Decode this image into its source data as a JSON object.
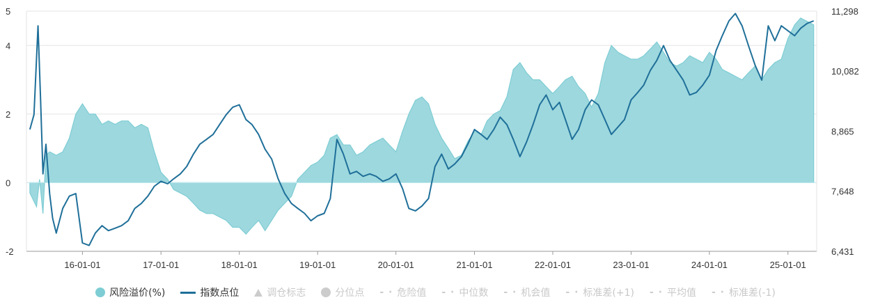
{
  "chart_data": {
    "type": "area",
    "x_tick_labels": [
      "16-01-01",
      "17-01-01",
      "18-01-01",
      "19-01-01",
      "20-01-01",
      "21-01-01",
      "22-01-01",
      "23-01-01",
      "24-01-01",
      "25-01-01"
    ],
    "y_left_ticks": [
      "5",
      "4",
      "2",
      "0",
      "-2"
    ],
    "y_right_ticks": [
      "11,298",
      "10,082",
      "8,865",
      "7,648",
      "6,431"
    ],
    "ylim_left": [
      -2,
      5
    ],
    "ylim_right": [
      6431,
      11298
    ],
    "grid": true,
    "legend_position": "bottom",
    "series": [
      {
        "name": "风险溢价(%)",
        "axis": "left",
        "kind": "area",
        "color": "#7ecdd4",
        "points": [
          [
            "2015-05-01",
            -0.3
          ],
          [
            "2015-06-01",
            -0.7
          ],
          [
            "2015-06-15",
            0.1
          ],
          [
            "2015-07-01",
            -0.9
          ],
          [
            "2015-07-15",
            0.8
          ],
          [
            "2015-08-01",
            0.9
          ],
          [
            "2015-09-01",
            0.8
          ],
          [
            "2015-10-01",
            0.9
          ],
          [
            "2015-11-01",
            1.3
          ],
          [
            "2015-12-01",
            2.0
          ],
          [
            "2016-01-01",
            2.3
          ],
          [
            "2016-02-01",
            2.0
          ],
          [
            "2016-03-01",
            2.0
          ],
          [
            "2016-04-01",
            1.7
          ],
          [
            "2016-05-01",
            1.8
          ],
          [
            "2016-06-01",
            1.7
          ],
          [
            "2016-07-01",
            1.8
          ],
          [
            "2016-08-01",
            1.8
          ],
          [
            "2016-09-01",
            1.6
          ],
          [
            "2016-10-01",
            1.7
          ],
          [
            "2016-11-01",
            1.6
          ],
          [
            "2016-12-01",
            0.9
          ],
          [
            "2017-01-01",
            0.3
          ],
          [
            "2017-02-01",
            0.1
          ],
          [
            "2017-03-01",
            -0.2
          ],
          [
            "2017-04-01",
            -0.3
          ],
          [
            "2017-05-01",
            -0.4
          ],
          [
            "2017-06-01",
            -0.6
          ],
          [
            "2017-07-01",
            -0.8
          ],
          [
            "2017-08-01",
            -0.9
          ],
          [
            "2017-09-01",
            -0.9
          ],
          [
            "2017-10-01",
            -1.0
          ],
          [
            "2017-11-01",
            -1.1
          ],
          [
            "2017-12-01",
            -1.3
          ],
          [
            "2018-01-01",
            -1.3
          ],
          [
            "2018-02-01",
            -1.5
          ],
          [
            "2018-03-01",
            -1.3
          ],
          [
            "2018-04-01",
            -1.1
          ],
          [
            "2018-05-01",
            -1.4
          ],
          [
            "2018-06-01",
            -1.1
          ],
          [
            "2018-07-01",
            -0.8
          ],
          [
            "2018-08-01",
            -0.6
          ],
          [
            "2018-09-01",
            -0.4
          ],
          [
            "2018-10-01",
            0.1
          ],
          [
            "2018-11-01",
            0.3
          ],
          [
            "2018-12-01",
            0.5
          ],
          [
            "2019-01-01",
            0.6
          ],
          [
            "2019-02-01",
            0.8
          ],
          [
            "2019-03-01",
            1.3
          ],
          [
            "2019-04-01",
            1.4
          ],
          [
            "2019-05-01",
            1.1
          ],
          [
            "2019-06-01",
            1.1
          ],
          [
            "2019-07-01",
            0.8
          ],
          [
            "2019-08-01",
            0.9
          ],
          [
            "2019-09-01",
            1.1
          ],
          [
            "2019-10-01",
            1.2
          ],
          [
            "2019-11-01",
            1.3
          ],
          [
            "2019-12-01",
            1.1
          ],
          [
            "2020-01-01",
            0.9
          ],
          [
            "2020-02-01",
            1.5
          ],
          [
            "2020-03-01",
            2.0
          ],
          [
            "2020-04-01",
            2.4
          ],
          [
            "2020-05-01",
            2.5
          ],
          [
            "2020-06-01",
            2.3
          ],
          [
            "2020-07-01",
            1.7
          ],
          [
            "2020-08-01",
            1.3
          ],
          [
            "2020-09-01",
            1.0
          ],
          [
            "2020-10-01",
            0.7
          ],
          [
            "2020-11-01",
            0.8
          ],
          [
            "2020-12-01",
            1.2
          ],
          [
            "2021-01-01",
            1.5
          ],
          [
            "2021-02-01",
            1.4
          ],
          [
            "2021-03-01",
            1.8
          ],
          [
            "2021-04-01",
            2.0
          ],
          [
            "2021-05-01",
            2.1
          ],
          [
            "2021-06-01",
            2.5
          ],
          [
            "2021-07-01",
            3.3
          ],
          [
            "2021-08-01",
            3.5
          ],
          [
            "2021-09-01",
            3.2
          ],
          [
            "2021-10-01",
            3.0
          ],
          [
            "2021-11-01",
            3.0
          ],
          [
            "2021-12-01",
            2.8
          ],
          [
            "2022-01-01",
            2.6
          ],
          [
            "2022-02-01",
            2.8
          ],
          [
            "2022-03-01",
            3.0
          ],
          [
            "2022-04-01",
            3.1
          ],
          [
            "2022-05-01",
            2.8
          ],
          [
            "2022-06-01",
            2.6
          ],
          [
            "2022-07-01",
            2.2
          ],
          [
            "2022-08-01",
            2.6
          ],
          [
            "2022-09-01",
            3.5
          ],
          [
            "2022-10-01",
            4.0
          ],
          [
            "2022-11-01",
            3.8
          ],
          [
            "2022-12-01",
            3.7
          ],
          [
            "2023-01-01",
            3.6
          ],
          [
            "2023-02-01",
            3.6
          ],
          [
            "2023-03-01",
            3.7
          ],
          [
            "2023-04-01",
            3.9
          ],
          [
            "2023-05-01",
            4.1
          ],
          [
            "2023-06-01",
            3.8
          ],
          [
            "2023-07-01",
            3.5
          ],
          [
            "2023-08-01",
            3.4
          ],
          [
            "2023-09-01",
            3.5
          ],
          [
            "2023-10-01",
            3.7
          ],
          [
            "2023-11-01",
            3.6
          ],
          [
            "2023-12-01",
            3.5
          ],
          [
            "2024-01-01",
            3.8
          ],
          [
            "2024-02-01",
            3.6
          ],
          [
            "2024-03-01",
            3.3
          ],
          [
            "2024-04-01",
            3.2
          ],
          [
            "2024-05-01",
            3.1
          ],
          [
            "2024-06-01",
            3.0
          ],
          [
            "2024-07-01",
            3.2
          ],
          [
            "2024-08-01",
            3.4
          ],
          [
            "2024-09-01",
            3.0
          ],
          [
            "2024-10-01",
            3.3
          ],
          [
            "2024-11-01",
            3.5
          ],
          [
            "2024-12-01",
            3.6
          ],
          [
            "2025-01-01",
            4.2
          ],
          [
            "2025-02-01",
            4.6
          ],
          [
            "2025-03-01",
            4.8
          ],
          [
            "2025-04-01",
            4.7
          ],
          [
            "2025-05-01",
            4.6
          ]
        ]
      },
      {
        "name": "指数点位",
        "axis": "right",
        "kind": "line",
        "color": "#1f6f99",
        "points": [
          [
            "2015-05-01",
            8900
          ],
          [
            "2015-05-20",
            9200
          ],
          [
            "2015-06-08",
            11000
          ],
          [
            "2015-06-20",
            9500
          ],
          [
            "2015-07-01",
            8000
          ],
          [
            "2015-07-15",
            8600
          ],
          [
            "2015-08-01",
            7600
          ],
          [
            "2015-08-15",
            7100
          ],
          [
            "2015-09-01",
            6800
          ],
          [
            "2015-10-01",
            7300
          ],
          [
            "2015-11-01",
            7550
          ],
          [
            "2015-12-01",
            7600
          ],
          [
            "2016-01-01",
            6600
          ],
          [
            "2016-02-01",
            6550
          ],
          [
            "2016-03-01",
            6800
          ],
          [
            "2016-04-01",
            6950
          ],
          [
            "2016-05-01",
            6850
          ],
          [
            "2016-06-01",
            6900
          ],
          [
            "2016-07-01",
            6950
          ],
          [
            "2016-08-01",
            7050
          ],
          [
            "2016-09-01",
            7300
          ],
          [
            "2016-10-01",
            7400
          ],
          [
            "2016-11-01",
            7550
          ],
          [
            "2016-12-01",
            7750
          ],
          [
            "2017-01-01",
            7850
          ],
          [
            "2017-02-01",
            7800
          ],
          [
            "2017-03-01",
            7900
          ],
          [
            "2017-04-01",
            8000
          ],
          [
            "2017-05-01",
            8150
          ],
          [
            "2017-06-01",
            8400
          ],
          [
            "2017-07-01",
            8600
          ],
          [
            "2017-08-01",
            8700
          ],
          [
            "2017-09-01",
            8800
          ],
          [
            "2017-10-01",
            9000
          ],
          [
            "2017-11-01",
            9200
          ],
          [
            "2017-12-01",
            9350
          ],
          [
            "2018-01-01",
            9400
          ],
          [
            "2018-02-01",
            9100
          ],
          [
            "2018-03-01",
            9000
          ],
          [
            "2018-04-01",
            8800
          ],
          [
            "2018-05-01",
            8500
          ],
          [
            "2018-06-01",
            8300
          ],
          [
            "2018-07-01",
            7900
          ],
          [
            "2018-08-01",
            7600
          ],
          [
            "2018-09-01",
            7400
          ],
          [
            "2018-10-01",
            7300
          ],
          [
            "2018-11-01",
            7200
          ],
          [
            "2018-12-01",
            7050
          ],
          [
            "2019-01-01",
            7150
          ],
          [
            "2019-02-01",
            7200
          ],
          [
            "2019-03-01",
            7500
          ],
          [
            "2019-04-01",
            8700
          ],
          [
            "2019-05-01",
            8400
          ],
          [
            "2019-06-01",
            8000
          ],
          [
            "2019-07-01",
            8050
          ],
          [
            "2019-08-01",
            7950
          ],
          [
            "2019-09-01",
            8000
          ],
          [
            "2019-10-01",
            7950
          ],
          [
            "2019-11-01",
            7850
          ],
          [
            "2019-12-01",
            7900
          ],
          [
            "2020-01-01",
            8000
          ],
          [
            "2020-02-01",
            7700
          ],
          [
            "2020-03-01",
            7300
          ],
          [
            "2020-04-01",
            7250
          ],
          [
            "2020-05-01",
            7350
          ],
          [
            "2020-06-01",
            7500
          ],
          [
            "2020-07-01",
            8150
          ],
          [
            "2020-08-01",
            8400
          ],
          [
            "2020-09-01",
            8100
          ],
          [
            "2020-10-01",
            8200
          ],
          [
            "2020-11-01",
            8350
          ],
          [
            "2020-12-01",
            8600
          ],
          [
            "2021-01-01",
            8900
          ],
          [
            "2021-02-01",
            8800
          ],
          [
            "2021-03-01",
            8700
          ],
          [
            "2021-04-01",
            8900
          ],
          [
            "2021-05-01",
            9150
          ],
          [
            "2021-06-01",
            9000
          ],
          [
            "2021-07-01",
            8700
          ],
          [
            "2021-08-01",
            8350
          ],
          [
            "2021-09-01",
            8650
          ],
          [
            "2021-10-01",
            9000
          ],
          [
            "2021-11-01",
            9400
          ],
          [
            "2021-12-01",
            9600
          ],
          [
            "2022-01-01",
            9300
          ],
          [
            "2022-02-01",
            9450
          ],
          [
            "2022-03-01",
            9100
          ],
          [
            "2022-04-01",
            8700
          ],
          [
            "2022-05-01",
            8900
          ],
          [
            "2022-06-01",
            9300
          ],
          [
            "2022-07-01",
            9500
          ],
          [
            "2022-08-01",
            9400
          ],
          [
            "2022-09-01",
            9100
          ],
          [
            "2022-10-01",
            8800
          ],
          [
            "2022-11-01",
            8950
          ],
          [
            "2022-12-01",
            9100
          ],
          [
            "2023-01-01",
            9500
          ],
          [
            "2023-02-01",
            9650
          ],
          [
            "2023-03-01",
            9800
          ],
          [
            "2023-04-01",
            10100
          ],
          [
            "2023-05-01",
            10300
          ],
          [
            "2023-06-01",
            10600
          ],
          [
            "2023-07-01",
            10300
          ],
          [
            "2023-08-01",
            10100
          ],
          [
            "2023-09-01",
            9900
          ],
          [
            "2023-10-01",
            9600
          ],
          [
            "2023-11-01",
            9650
          ],
          [
            "2023-12-01",
            9800
          ],
          [
            "2024-01-01",
            10000
          ],
          [
            "2024-02-01",
            10500
          ],
          [
            "2024-03-01",
            10800
          ],
          [
            "2024-04-01",
            11100
          ],
          [
            "2024-05-01",
            11250
          ],
          [
            "2024-06-01",
            11000
          ],
          [
            "2024-07-01",
            10600
          ],
          [
            "2024-08-01",
            10200
          ],
          [
            "2024-09-01",
            9900
          ],
          [
            "2024-10-01",
            11000
          ],
          [
            "2024-11-01",
            10700
          ],
          [
            "2024-12-01",
            11000
          ],
          [
            "2025-01-01",
            10900
          ],
          [
            "2025-02-01",
            10800
          ],
          [
            "2025-03-01",
            10950
          ],
          [
            "2025-04-01",
            11050
          ],
          [
            "2025-05-01",
            11100
          ]
        ]
      }
    ],
    "legend": [
      {
        "label": "风险溢价(%)",
        "marker": "circle",
        "color": "#7ecdd4",
        "active": true
      },
      {
        "label": "指数点位",
        "marker": "line",
        "color": "#1f6f99",
        "active": true
      },
      {
        "label": "调仓标志",
        "marker": "triangle",
        "color": "#cccccc",
        "active": false
      },
      {
        "label": "分位点",
        "marker": "circle",
        "color": "#cccccc",
        "active": false
      },
      {
        "label": "危险值",
        "marker": "dash",
        "color": "#cccccc",
        "active": false
      },
      {
        "label": "中位数",
        "marker": "dash",
        "color": "#cccccc",
        "active": false
      },
      {
        "label": "机会值",
        "marker": "dash",
        "color": "#cccccc",
        "active": false
      },
      {
        "label": "标准差(+1)",
        "marker": "dash",
        "color": "#cccccc",
        "active": false
      },
      {
        "label": "平均值",
        "marker": "dash",
        "color": "#cccccc",
        "active": false
      },
      {
        "label": "标准差(-1)",
        "marker": "dash",
        "color": "#cccccc",
        "active": false
      }
    ]
  }
}
